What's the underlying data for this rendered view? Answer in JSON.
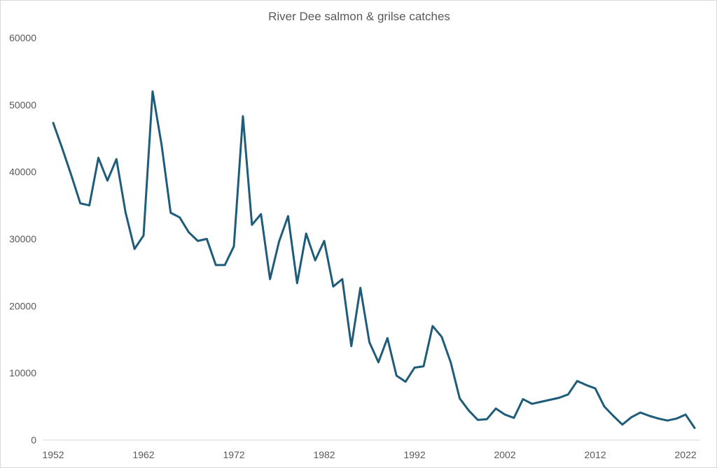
{
  "chart_data": {
    "type": "line",
    "title": "River Dee salmon & grilse catches",
    "xlabel": "",
    "ylabel": "",
    "ylim": [
      0,
      60000
    ],
    "xlim": [
      1952,
      2023
    ],
    "y_ticks": [
      0,
      10000,
      20000,
      30000,
      40000,
      50000,
      60000
    ],
    "x_ticks": [
      1952,
      1962,
      1972,
      1982,
      1992,
      2002,
      2012,
      2022
    ],
    "grid": false,
    "legend": "none",
    "series": [
      {
        "name": "Catches",
        "color": "#1f5c7a",
        "x": [
          1952,
          1953,
          1954,
          1955,
          1956,
          1957,
          1958,
          1959,
          1960,
          1961,
          1962,
          1963,
          1964,
          1965,
          1966,
          1967,
          1968,
          1969,
          1970,
          1971,
          1972,
          1973,
          1974,
          1975,
          1976,
          1977,
          1978,
          1979,
          1980,
          1981,
          1982,
          1983,
          1984,
          1985,
          1986,
          1987,
          1988,
          1989,
          1990,
          1991,
          1992,
          1993,
          1994,
          1995,
          1996,
          1997,
          1998,
          1999,
          2000,
          2001,
          2002,
          2003,
          2004,
          2005,
          2006,
          2007,
          2008,
          2009,
          2010,
          2011,
          2012,
          2013,
          2014,
          2015,
          2016,
          2017,
          2018,
          2019,
          2020,
          2021,
          2022,
          2023
        ],
        "values": [
          47300,
          43500,
          39500,
          35300,
          35000,
          42100,
          38700,
          41900,
          34000,
          28500,
          30500,
          52000,
          44000,
          33900,
          33200,
          31000,
          29700,
          30000,
          26100,
          26100,
          28900,
          48300,
          32100,
          33700,
          24000,
          29600,
          33400,
          23400,
          30800,
          26800,
          29700,
          22900,
          24000,
          14000,
          22700,
          14600,
          11600,
          15200,
          9600,
          8700,
          10800,
          11000,
          17000,
          15400,
          11600,
          6200,
          4400,
          3000,
          3100,
          4700,
          3800,
          3300,
          6100,
          5400,
          5700,
          6000,
          6300,
          6800,
          8800,
          8200,
          7700,
          5000,
          3600,
          2300,
          3400,
          4100,
          3600,
          3200,
          2900,
          3200,
          3800,
          1800
        ]
      }
    ]
  }
}
